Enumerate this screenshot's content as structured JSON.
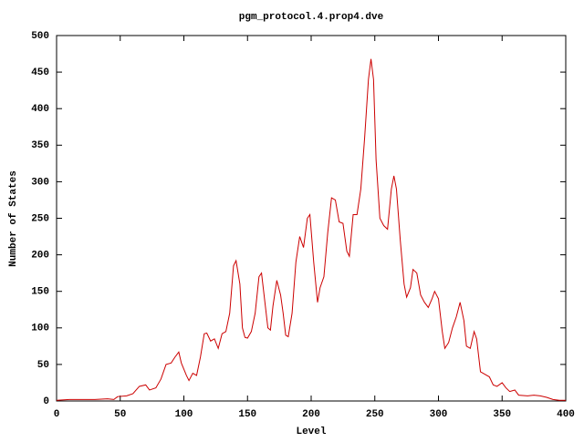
{
  "chart_data": {
    "type": "line",
    "title": "pgm_protocol.4.prop4.dve",
    "x_label": "Level",
    "y_label": "Number of States",
    "xlim": [
      0,
      400
    ],
    "xticks": [
      0,
      50,
      100,
      150,
      200,
      250,
      300,
      350,
      400
    ],
    "ylim": [
      0,
      500
    ],
    "yticks": [
      0,
      50,
      100,
      150,
      200,
      250,
      300,
      350,
      400,
      450,
      500
    ],
    "series": [
      {
        "color": "#cc0000",
        "x": [
          0,
          10,
          20,
          30,
          40,
          45,
          48,
          55,
          60,
          65,
          70,
          73,
          78,
          82,
          86,
          90,
          93,
          96,
          98,
          102,
          104,
          107,
          110,
          113,
          116,
          118,
          121,
          124,
          127,
          130,
          133,
          136,
          139,
          141,
          144,
          146,
          148,
          150,
          153,
          156,
          159,
          161,
          164,
          166,
          168,
          170,
          173,
          176,
          178,
          180,
          182,
          185,
          188,
          191,
          194,
          197,
          199,
          202,
          205,
          207,
          210,
          213,
          216,
          219,
          222,
          225,
          228,
          230,
          233,
          236,
          239,
          242,
          245,
          247,
          249,
          251,
          254,
          257,
          260,
          263,
          265,
          267,
          270,
          273,
          275,
          278,
          280,
          283,
          286,
          289,
          292,
          295,
          297,
          300,
          303,
          305,
          308,
          311,
          314,
          317,
          320,
          322,
          325,
          328,
          330,
          333,
          336,
          340,
          343,
          346,
          350,
          353,
          356,
          360,
          363,
          370,
          375,
          380,
          385,
          390,
          395,
          400
        ],
        "values": [
          1,
          2,
          2,
          2,
          3,
          2,
          6,
          7,
          10,
          20,
          22,
          15,
          18,
          30,
          50,
          52,
          60,
          67,
          52,
          35,
          28,
          38,
          35,
          60,
          92,
          93,
          82,
          85,
          72,
          92,
          95,
          120,
          185,
          192,
          160,
          100,
          87,
          86,
          95,
          120,
          170,
          175,
          130,
          100,
          97,
          130,
          165,
          145,
          120,
          90,
          88,
          120,
          190,
          225,
          210,
          250,
          255,
          190,
          135,
          155,
          170,
          230,
          278,
          275,
          245,
          243,
          205,
          198,
          255,
          255,
          290,
          360,
          440,
          468,
          440,
          330,
          250,
          240,
          235,
          290,
          308,
          290,
          220,
          160,
          142,
          155,
          180,
          175,
          145,
          135,
          128,
          140,
          150,
          140,
          95,
          72,
          80,
          100,
          115,
          135,
          110,
          75,
          72,
          95,
          85,
          40,
          37,
          33,
          22,
          20,
          25,
          18,
          13,
          15,
          8,
          7,
          8,
          7,
          5,
          2,
          1,
          1
        ]
      }
    ]
  }
}
